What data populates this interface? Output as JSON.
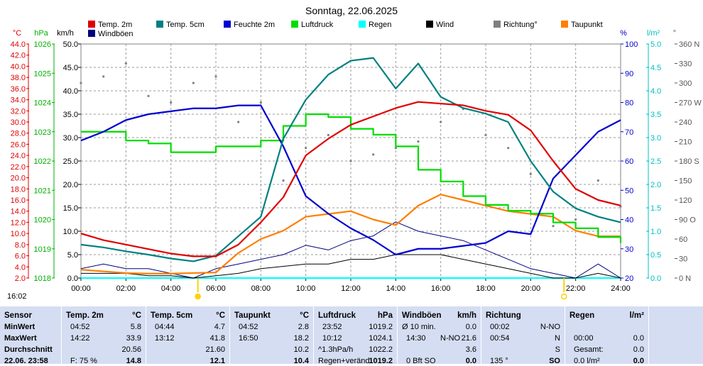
{
  "chart_data": {
    "type": "line",
    "title": "Sonntag, 22.06.2025",
    "x_ticks": [
      "00:00",
      "02:00",
      "04:00",
      "06:00",
      "08:00",
      "10:00",
      "12:00",
      "14:00",
      "16:00",
      "18:00",
      "20:00",
      "22:00",
      "24:00"
    ],
    "axes": {
      "temp_c": {
        "unit": "°C",
        "min": 2,
        "max": 44,
        "ticks": [
          "44.0",
          "42.0",
          "40.0",
          "38.0",
          "36.0",
          "34.0",
          "32.0",
          "30.0",
          "28.0",
          "26.0",
          "24.0",
          "22.0",
          "20.0",
          "18.0",
          "16.0",
          "14.0",
          "12.0",
          "10.0",
          "8.0",
          "6.0",
          "4.0",
          "2.0"
        ]
      },
      "pressure_hpa": {
        "unit": "hPa",
        "min": 1018,
        "max": 1026,
        "ticks": [
          "1026",
          "1025",
          "1024",
          "1023",
          "1022",
          "1021",
          "1020",
          "1019",
          "1018"
        ]
      },
      "wind_kmh": {
        "unit": "km/h",
        "min": 0,
        "max": 50,
        "ticks": [
          "50.0",
          "45.0",
          "40.0",
          "35.0",
          "30.0",
          "25.0",
          "20.0",
          "15.0",
          "10.0",
          "5.0",
          "0.0"
        ]
      },
      "humidity_pct": {
        "unit": "%",
        "min": 20,
        "max": 100,
        "ticks": [
          "100",
          "90",
          "80",
          "70",
          "60",
          "50",
          "40",
          "30",
          "20"
        ]
      },
      "rain_lm2": {
        "unit": "l/m²",
        "min": 0,
        "max": 5,
        "ticks": [
          "5.0",
          "4.5",
          "4.0",
          "3.5",
          "3.0",
          "2.5",
          "2.0",
          "1.5",
          "1.0",
          "0.5",
          "0.0"
        ]
      },
      "direction_deg": {
        "unit": "°",
        "min": 0,
        "max": 360,
        "ticks": [
          "360 N",
          "330",
          "300",
          "270 W",
          "240",
          "210",
          "180 S",
          "150",
          "120",
          "90 O",
          "60",
          "30",
          "0 N"
        ]
      }
    },
    "series": [
      {
        "name": "Temp. 2m",
        "color": "#e00000",
        "axis": "temp_c",
        "x": [
          0,
          1,
          2,
          3,
          4,
          5,
          6,
          7,
          8,
          9,
          10,
          11,
          12,
          13,
          14,
          15,
          16,
          17,
          18,
          19,
          20,
          21,
          22,
          23,
          24
        ],
        "values": [
          10.0,
          8.8,
          8.0,
          7.2,
          6.4,
          5.9,
          5.9,
          8.0,
          12.0,
          16.5,
          24.0,
          27.0,
          29.5,
          31.0,
          32.5,
          33.6,
          33.3,
          33.0,
          32.0,
          31.3,
          28.5,
          23.0,
          18.0,
          16.0,
          15.0
        ]
      },
      {
        "name": "Temp. 5cm",
        "color": "#008080",
        "axis": "temp_c",
        "x": [
          0,
          1,
          2,
          3,
          4,
          5,
          6,
          7,
          8,
          9,
          10,
          11,
          12,
          13,
          14,
          15,
          16,
          17,
          18,
          19,
          20,
          21,
          22,
          23,
          24
        ],
        "values": [
          8.0,
          7.5,
          6.8,
          6.2,
          5.5,
          5.0,
          6.0,
          9.5,
          13.0,
          27.0,
          34.0,
          38.5,
          41.0,
          41.5,
          36.0,
          40.5,
          34.5,
          32.5,
          31.5,
          30.0,
          23.0,
          17.5,
          14.5,
          13.0,
          12.0
        ]
      },
      {
        "name": "Feuchte 2m",
        "color": "#0000d0",
        "axis": "humidity_pct",
        "x": [
          0,
          1,
          2,
          3,
          4,
          5,
          6,
          7,
          8,
          9,
          10,
          11,
          12,
          13,
          14,
          15,
          16,
          17,
          18,
          19,
          20,
          21,
          22,
          23,
          24
        ],
        "values": [
          67,
          70,
          74,
          76,
          77,
          78,
          78,
          79,
          79,
          65,
          48,
          42,
          37,
          33,
          28,
          30,
          30,
          31,
          32,
          36,
          35,
          54,
          62,
          70,
          74
        ]
      },
      {
        "name": "Luftdruck",
        "color": "#00dd00",
        "axis": "pressure_hpa",
        "x": [
          0,
          1,
          2,
          3,
          4,
          5,
          6,
          7,
          8,
          9,
          10,
          11,
          12,
          13,
          14,
          15,
          16,
          17,
          18,
          19,
          20,
          21,
          22,
          23,
          24
        ],
        "values": [
          1023.0,
          1023.0,
          1022.7,
          1022.6,
          1022.3,
          1022.3,
          1022.5,
          1022.5,
          1022.7,
          1023.2,
          1023.6,
          1023.5,
          1023.1,
          1022.9,
          1022.5,
          1021.7,
          1021.3,
          1020.8,
          1020.5,
          1020.3,
          1020.2,
          1019.9,
          1019.7,
          1019.4,
          1019.2
        ]
      },
      {
        "name": "Taupunkt",
        "color": "#ff7f00",
        "axis": "temp_c",
        "x": [
          0,
          1,
          2,
          3,
          4,
          5,
          6,
          7,
          8,
          9,
          10,
          11,
          12,
          13,
          14,
          15,
          16,
          17,
          18,
          19,
          20,
          21,
          22,
          23,
          24
        ],
        "values": [
          3.5,
          3.2,
          2.9,
          2.8,
          2.8,
          2.9,
          3.0,
          6.5,
          9.0,
          10.5,
          13.0,
          13.5,
          14.0,
          12.5,
          11.5,
          15.0,
          17.0,
          16.0,
          15.0,
          14.0,
          13.5,
          13.0,
          10.5,
          9.5,
          9.5
        ]
      },
      {
        "name": "Wind",
        "color": "#000000",
        "axis": "wind_kmh",
        "x": [
          0,
          1,
          2,
          3,
          4,
          5,
          6,
          7,
          8,
          9,
          10,
          11,
          12,
          13,
          14,
          15,
          16,
          17,
          18,
          19,
          20,
          21,
          22,
          23,
          24
        ],
        "values": [
          1,
          1,
          1,
          0.5,
          0.5,
          0,
          0.5,
          1,
          2,
          2.5,
          3,
          3,
          4,
          4,
          5,
          5,
          5,
          4,
          3,
          2,
          1,
          0,
          0,
          1,
          0
        ]
      },
      {
        "name": "Windböen",
        "color": "#000080",
        "axis": "wind_kmh",
        "x": [
          0,
          1,
          2,
          3,
          4,
          5,
          6,
          7,
          8,
          9,
          10,
          11,
          12,
          13,
          14,
          15,
          16,
          17,
          18,
          19,
          20,
          21,
          22,
          23,
          24
        ],
        "values": [
          2,
          3,
          2,
          2,
          1,
          0,
          2,
          3,
          4,
          5,
          7,
          6,
          8,
          9,
          12,
          10,
          9,
          8,
          6,
          4,
          2,
          1,
          0,
          3,
          0
        ]
      },
      {
        "name": "Richtung°",
        "color": "#808080",
        "axis": "direction_deg",
        "x": [
          0,
          1,
          2,
          3,
          4,
          5,
          6,
          7,
          8,
          9,
          10,
          11,
          12,
          13,
          14,
          15,
          16,
          17,
          18,
          19,
          20,
          21,
          22,
          23,
          24
        ],
        "values": [
          300,
          310,
          330,
          280,
          270,
          300,
          310,
          240,
          270,
          150,
          200,
          220,
          180,
          190,
          200,
          210,
          240,
          260,
          220,
          200,
          160,
          80,
          90,
          150,
          110
        ]
      },
      {
        "name": "Regen",
        "color": "#00ffff",
        "axis": "rain_lm2",
        "x": [
          0,
          24
        ],
        "values": [
          0,
          0
        ]
      }
    ],
    "sunrise": "05:12",
    "sunset": "21:29"
  },
  "chart_labels": {
    "legend": [
      "Temp. 2m",
      "Temp. 5cm",
      "Feuchte 2m",
      "Luftdruck",
      "Regen",
      "Wind",
      "Richtung°",
      "Taupunkt",
      "Windböen"
    ],
    "time_now": "16:02"
  },
  "table": {
    "rowlabels": {
      "header": "Sensor",
      "min": "MinWert",
      "max": "MaxWert",
      "avg": "Durchschnitt",
      "now": "22.06. 23:58"
    },
    "temp2": {
      "title": "Temp. 2m",
      "unit": "°C",
      "min_t": "04:52",
      "min_v": "5.8",
      "max_t": "14:22",
      "max_v": "33.9",
      "avg": "20.56",
      "now_l": "F: 75 %",
      "now_v": "14.8"
    },
    "temp5": {
      "title": "Temp. 5cm",
      "unit": "°C",
      "min_t": "04:44",
      "min_v": "4.7",
      "max_t": "13:12",
      "max_v": "41.8",
      "avg": "21.60",
      "now_v": "12.1"
    },
    "taupunkt": {
      "title": "Taupunkt",
      "unit": "°C",
      "min_t": "04:52",
      "min_v": "2.8",
      "max_t": "16:50",
      "max_v": "18.2",
      "avg": "10.2",
      "now_v": "10.4"
    },
    "luftdruck": {
      "title": "Luftdruck",
      "unit": "hPa",
      "min_t": "23:52",
      "min_v": "1019.2",
      "max_t": "10:12",
      "max_v": "1024.1",
      "avg_l": "^1.3hPa/h",
      "avg": "1022.2",
      "now_l": "Regen+veränd.",
      "now_v": "1019.2"
    },
    "wind": {
      "title": "Windböen",
      "unit": "km/h",
      "min_l": "Ø 10 min.",
      "min_v": "0.0",
      "max_t": "14:30",
      "max_d": "N-NO",
      "max_v": "21.6",
      "avg": "3.6",
      "now_l": "0 Bft SO",
      "now_v": "0.0"
    },
    "richtung": {
      "title": "Richtung",
      "min_t": "00:02",
      "min_v": "N-NO",
      "max_t": "00:54",
      "max_v": "N",
      "avg": "S",
      "now_l": "135 °",
      "now_v": "SO"
    },
    "regen": {
      "title": "Regen",
      "unit": "l/m²",
      "max_t": "00:00",
      "max_v": "0.0",
      "avg_l": "Gesamt:",
      "avg": "0.0",
      "now_l": "0.0 l/m²",
      "now_v": "0.0"
    }
  }
}
